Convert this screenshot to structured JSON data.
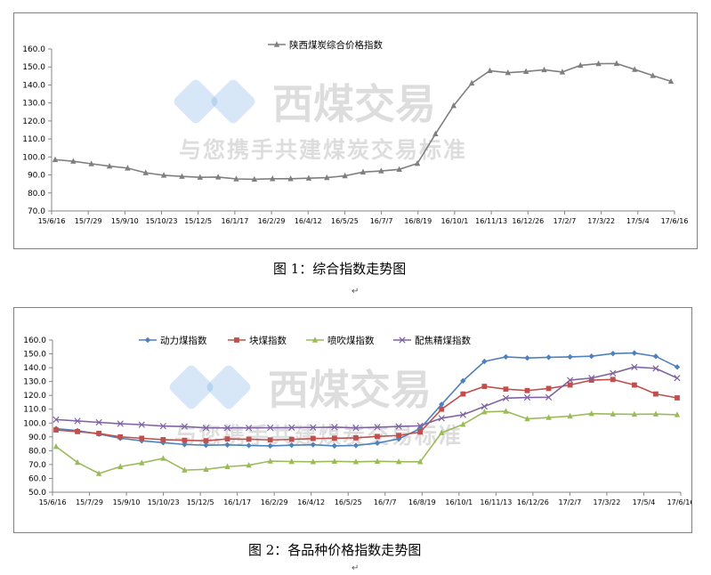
{
  "caption1": "图 1：综合指数走势图",
  "caption2": "图 2：各品种价格指数走势图",
  "watermark": {
    "brand": "西煤交易",
    "slogan": "与您携手共建煤炭交易标准"
  },
  "chart_data": [
    {
      "type": "line",
      "series": [
        {
          "name": "陕西煤炭综合价格指数",
          "color": "#7f7f7f",
          "marker": "triangle",
          "values": [
            98.5,
            97.6,
            96.2,
            94.9,
            93.8,
            91.2,
            89.8,
            89.2,
            88.7,
            88.8,
            87.8,
            87.6,
            87.9,
            87.9,
            88.2,
            88.5,
            89.5,
            91.6,
            92.2,
            93.1,
            96.4,
            112.8,
            128.5,
            141.0,
            147.9,
            146.8,
            147.5,
            148.4,
            147.2,
            150.9,
            151.8,
            151.9,
            148.6,
            145.2,
            142.0
          ]
        }
      ],
      "x_ticks": [
        "15/6/16",
        "15/7/29",
        "15/9/10",
        "15/10/23",
        "15/12/5",
        "16/1/17",
        "16/2/29",
        "16/4/12",
        "16/5/25",
        "16/7/7",
        "16/8/19",
        "16/10/1",
        "16/11/13",
        "16/12/26",
        "17/2/7",
        "17/3/22",
        "17/5/4",
        "17/6/16"
      ],
      "y_ticks": [
        "70.0",
        "80.0",
        "90.0",
        "100.0",
        "110.0",
        "120.0",
        "130.0",
        "140.0",
        "150.0",
        "160.0"
      ],
      "ylim": [
        70,
        160
      ],
      "legend": "top-center",
      "grid": false
    },
    {
      "type": "line",
      "series": [
        {
          "name": "动力煤指数",
          "color": "#4f81bd",
          "marker": "diamond",
          "values": [
            96,
            94.5,
            92,
            89,
            87.2,
            85.8,
            84.5,
            84.0,
            84.2,
            83.8,
            83.5,
            84.0,
            84.3,
            83.5,
            83.8,
            85.5,
            88.5,
            96.0,
            113.5,
            130.5,
            144.5,
            147.8,
            147.0,
            147.5,
            147.8,
            148.3,
            150.2,
            150.6,
            148.2,
            140.5
          ]
        },
        {
          "name": "块煤指数",
          "color": "#c0504d",
          "marker": "square",
          "values": [
            95,
            93.8,
            92.5,
            90.0,
            89.0,
            88.0,
            87.5,
            87.2,
            88.5,
            88.3,
            87.8,
            88.2,
            88.8,
            89.0,
            89.3,
            90.3,
            91.0,
            93.5,
            110.0,
            121.0,
            126.5,
            124.5,
            123.5,
            125.0,
            127.5,
            131.0,
            131.5,
            127.5,
            121.0,
            118.2
          ]
        },
        {
          "name": "喷吹煤指数",
          "color": "#9bbb59",
          "marker": "triangle",
          "values": [
            83,
            71.5,
            63.5,
            68.5,
            71.2,
            74.5,
            66.0,
            66.5,
            68.5,
            69.5,
            72.5,
            72.2,
            72.0,
            72.3,
            72.0,
            72.3,
            72.1,
            72.0,
            93.0,
            99.0,
            108.0,
            108.5,
            103.0,
            104.0,
            105.0,
            106.8,
            106.5,
            106.3,
            106.5,
            106.0
          ]
        },
        {
          "name": "配焦精煤指数",
          "color": "#8064a2",
          "marker": "x",
          "values": [
            102.5,
            101.5,
            100.5,
            99.5,
            98.8,
            97.8,
            97.5,
            96.5,
            96.5,
            96.5,
            96.6,
            96.7,
            96.8,
            97.0,
            96.5,
            97.0,
            97.5,
            98.0,
            103.5,
            106.0,
            112.0,
            118.0,
            118.5,
            118.6,
            131.0,
            132.5,
            136.0,
            140.5,
            139.5,
            132.5
          ]
        }
      ],
      "x_ticks": [
        "15/6/16",
        "15/7/29",
        "15/9/10",
        "15/10/23",
        "15/12/5",
        "16/1/17",
        "16/2/29",
        "16/4/12",
        "16/5/25",
        "16/7/7",
        "16/8/19",
        "16/10/1",
        "16/11/13",
        "16/12/26",
        "17/2/7",
        "17/3/22",
        "17/5/4",
        "17/6/16"
      ],
      "y_ticks": [
        "50.0",
        "60.0",
        "70.0",
        "80.0",
        "90.0",
        "100.0",
        "110.0",
        "120.0",
        "130.0",
        "140.0",
        "150.0",
        "160.0"
      ],
      "ylim": [
        50,
        160
      ],
      "legend": "top-center",
      "grid": false
    }
  ]
}
